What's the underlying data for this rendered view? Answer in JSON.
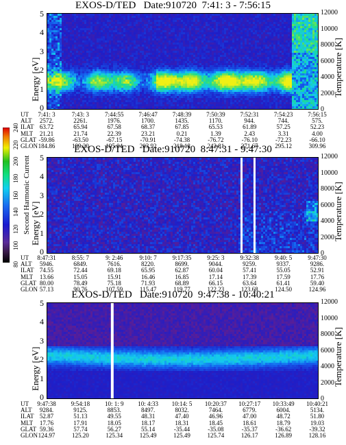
{
  "colorbar": {
    "label": "Second Harmonic Current",
    "ticks": [
      "80",
      "100",
      "120",
      "140",
      "160",
      "180",
      "200",
      "220",
      "240"
    ]
  },
  "panels": [
    {
      "title": "EXOS-D/TED   Date:910720  7:41: 3 - 7:56:15",
      "ylabel": "Energy [eV]",
      "ylabel_right": "Temperature [K]",
      "yticks": [
        "0",
        "1",
        "2",
        "3",
        "4",
        "5"
      ],
      "yticks_right": [
        "0",
        "2000",
        "4000",
        "6000",
        "8000",
        "10000",
        "12000"
      ],
      "row_labels": [
        "UT",
        "ALT",
        "ILAT",
        "MLT",
        "GLAT",
        "GLON"
      ],
      "columns": [
        [
          "7:41: 3",
          "2572.",
          "63.72",
          "21.21",
          "-59.86",
          "184.86"
        ],
        [
          "7:43: 3",
          "2261.",
          "65.94",
          "21.74",
          "-63.50",
          "189.20"
        ],
        [
          "7:44:55",
          "1976.",
          "67.58",
          "22.39",
          "-67.15",
          "195.04"
        ],
        [
          "7:46:47",
          "1700.",
          "68.37",
          "23.21",
          "-70.91",
          "203.92"
        ],
        [
          "7:48:39",
          "1435.",
          "67.85",
          "0.21",
          "-74.38",
          "218.18"
        ],
        [
          "7:50:39",
          "1170.",
          "65.53",
          "1.39",
          "-76.72",
          "242.81"
        ],
        [
          "7:52:31",
          "944.",
          "61.89",
          "2.43",
          "-76.10",
          "271.67"
        ],
        [
          "7:54:23",
          "744.",
          "57.25",
          "3.31",
          "-72.23",
          "295.12"
        ],
        [
          "7:56:15",
          "575.",
          "52.23",
          "4.00",
          "-66.10",
          "309.96"
        ]
      ]
    },
    {
      "title": "EXOS-D/TED   Date:910720  8:47:31 - 9:47:30",
      "ylabel": "Energy [eV]",
      "ylabel_right": "Temperature [K]",
      "yticks": [
        "0",
        "1",
        "2",
        "3",
        "4",
        "5"
      ],
      "yticks_right": [
        "0",
        "2000",
        "4000",
        "6000",
        "8000",
        "10000",
        "12000"
      ],
      "row_labels": [
        "UT",
        "ALT",
        "ILAT",
        "MLT",
        "GLAT",
        "GLON"
      ],
      "columns": [
        [
          "8:47:31",
          "5946.",
          "74.55",
          "13.66",
          "80.00",
          "57.13"
        ],
        [
          "8:55: 7",
          "6849.",
          "72.44",
          "15.05",
          "78.49",
          "90.76"
        ],
        [
          "9: 2:46",
          "7616.",
          "69.18",
          "15.91",
          "75.18",
          "107.59"
        ],
        [
          "9:10: 7",
          "8220.",
          "65.95",
          "16.46",
          "71.93",
          "115.47"
        ],
        [
          "9:17:35",
          "8699.",
          "62.87",
          "16.85",
          "68.89",
          "119.77"
        ],
        [
          "9:25: 3",
          "9044.",
          "60.04",
          "17.14",
          "66.15",
          "122.23"
        ],
        [
          "9:32:38",
          "9259.",
          "57.41",
          "17.39",
          "63.64",
          "123.68"
        ],
        [
          "9:40: 5",
          "9337.",
          "55.05",
          "17.59",
          "61.41",
          "124.50"
        ],
        [
          "9:47:30",
          "9286.",
          "52.91",
          "17.76",
          "59.40",
          "124.96"
        ]
      ]
    },
    {
      "title": "EXOS-D/TED   Date:910720  9:47:38 - 10:40:21",
      "ylabel": "Energy [eV]",
      "ylabel_right": "Temperature [K]",
      "yticks": [
        "0",
        "1",
        "2",
        "3",
        "4",
        "5"
      ],
      "yticks_right": [
        "0",
        "2000",
        "4000",
        "6000",
        "8000",
        "10000",
        "12000"
      ],
      "row_labels": [
        "UT",
        "ALT",
        "ILAT",
        "MLT",
        "GLAT",
        "GLON"
      ],
      "columns": [
        [
          "9:47:38",
          "9284.",
          "52.87",
          "17.76",
          "59.36",
          "124.97"
        ],
        [
          "9:54:18",
          "9125.",
          "51.13",
          "17.91",
          "57.74",
          "125.20"
        ],
        [
          "10: 1: 9",
          "8853.",
          "49.55",
          "18.05",
          "56.27",
          "125.34"
        ],
        [
          "10: 4:33",
          "8497.",
          "48.31",
          "18.17",
          "55.14",
          "125.49"
        ],
        [
          "10:14: 5",
          "8032.",
          "47.40",
          "18.31",
          "-35.44",
          "125.49"
        ],
        [
          "10:20:37",
          "7464.",
          "46.96",
          "18.45",
          "-35.08",
          "125.74"
        ],
        [
          "10:27:17",
          "6779.",
          "47.00",
          "18.61",
          "-35.37",
          "126.17"
        ],
        [
          "10:33:49",
          "6004.",
          "48.72",
          "18.79",
          "-36.62",
          "126.89"
        ],
        [
          "10:40:21",
          "5134.",
          "51.80",
          "19.03",
          "-39.32",
          "128.16"
        ]
      ]
    }
  ],
  "chart_data": [
    {
      "type": "heatmap",
      "title": "EXOS-D/TED   Date:910720  7:41: 3 - 7:56:15",
      "ylabel": "Energy [eV]",
      "ylabel_right": "Temperature [K]",
      "ylim": [
        0,
        5
      ],
      "ylim_right": [
        0,
        12000
      ],
      "x": [
        "7:41: 3",
        "7:43: 3",
        "7:44:55",
        "7:46:47",
        "7:48:39",
        "7:50:39",
        "7:52:31",
        "7:54:23",
        "7:56:15"
      ],
      "colorbar": {
        "label": "Second Harmonic Current",
        "range": [
          80,
          240
        ]
      }
    },
    {
      "type": "heatmap",
      "title": "EXOS-D/TED   Date:910720  8:47:31 - 9:47:30",
      "ylabel": "Energy [eV]",
      "ylabel_right": "Temperature [K]",
      "ylim": [
        0,
        5
      ],
      "ylim_right": [
        0,
        12000
      ],
      "x": [
        "8:47:31",
        "8:55: 7",
        "9: 2:46",
        "9:10: 7",
        "9:17:35",
        "9:25: 3",
        "9:32:38",
        "9:40: 5",
        "9:47:30"
      ],
      "colorbar": {
        "label": "Second Harmonic Current",
        "range": [
          80,
          240
        ]
      }
    },
    {
      "type": "heatmap",
      "title": "EXOS-D/TED   Date:910720  9:47:38 - 10:40:21",
      "ylabel": "Energy [eV]",
      "ylabel_right": "Temperature [K]",
      "ylim": [
        0,
        5
      ],
      "ylim_right": [
        0,
        12000
      ],
      "x": [
        "9:47:38",
        "9:54:18",
        "10: 1: 9",
        "10: 4:33",
        "10:14: 5",
        "10:20:37",
        "10:27:17",
        "10:33:49",
        "10:40:21"
      ],
      "colorbar": {
        "label": "Second Harmonic Current",
        "range": [
          80,
          240
        ]
      }
    }
  ]
}
